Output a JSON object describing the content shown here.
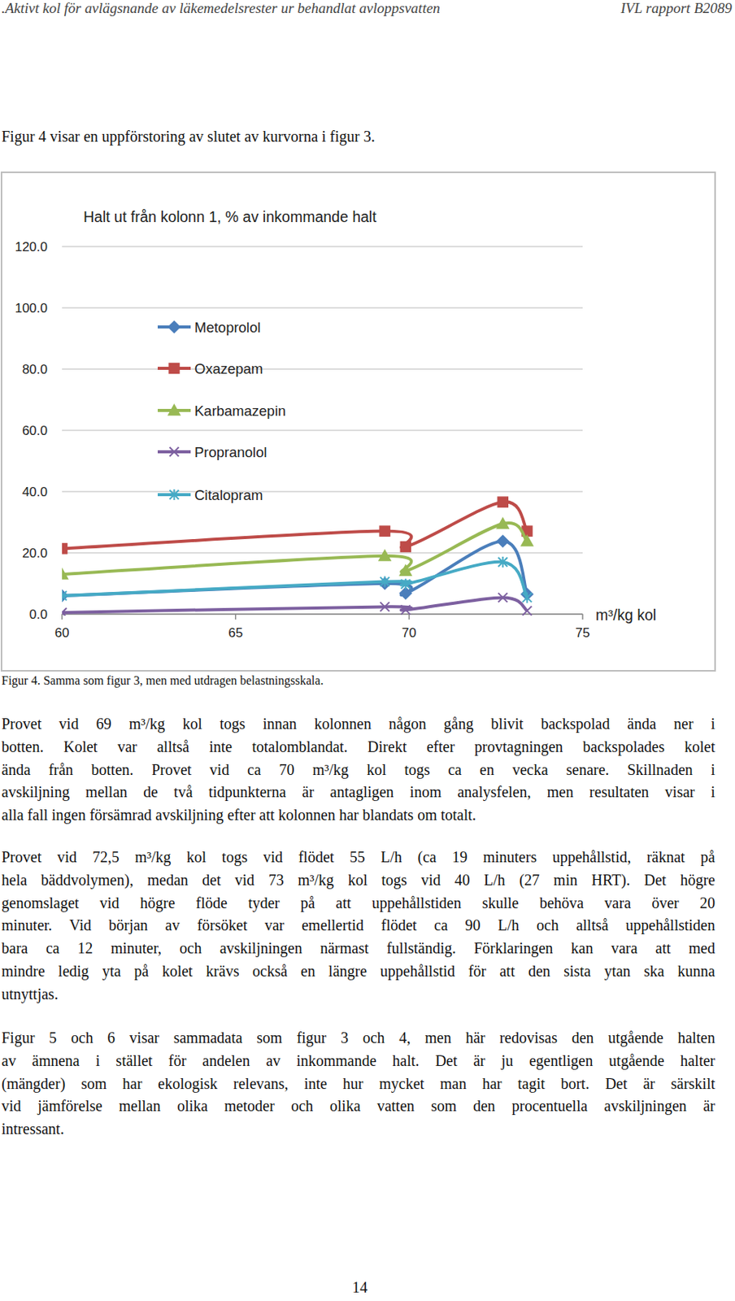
{
  "header": {
    "left": ".Aktivt kol för avlägsnande av läkemedelsrester ur behandlat avloppsvatten",
    "right": "IVL rapport B2089"
  },
  "intro": "Figur 4 visar en uppförstoring av slutet av kurvorna i figur 3.",
  "chart_data": {
    "type": "line",
    "title": "Halt ut från kolonn 1, % av inkommande halt",
    "x_label": "m³/kg kol",
    "x": [
      60,
      69.3,
      69.9,
      72.7,
      73.4
    ],
    "xlim": [
      60,
      75
    ],
    "xticks": [
      60,
      65,
      70,
      75
    ],
    "ylim": [
      0,
      120
    ],
    "yticks": [
      {
        "value": 0,
        "label": "0.0"
      },
      {
        "value": 20,
        "label": "20.0"
      },
      {
        "value": 40,
        "label": "40.0"
      },
      {
        "value": 60,
        "label": "60.0"
      },
      {
        "value": 80,
        "label": "80.0"
      },
      {
        "value": 100,
        "label": "100.0"
      },
      {
        "value": 120,
        "label": "120.0"
      }
    ],
    "grid": true,
    "legend": "top-left",
    "series": [
      {
        "name": "Metoprolol",
        "color": "#4a7ebb",
        "marker": "diamond",
        "values": [
          6,
          10,
          6.8,
          23.8,
          6.5
        ]
      },
      {
        "name": "Oxazepam",
        "color": "#be4b48",
        "marker": "square",
        "values": [
          21.4,
          27.1,
          22,
          36.6,
          27.1
        ]
      },
      {
        "name": "Karbamazepin",
        "color": "#98b954",
        "marker": "triangle",
        "values": [
          13,
          19,
          14.1,
          29.5,
          23.8
        ]
      },
      {
        "name": "Propranolol",
        "color": "#7d60a0",
        "marker": "x",
        "values": [
          0.5,
          2.4,
          1.4,
          5.4,
          1.1
        ]
      },
      {
        "name": "Citalopram",
        "color": "#46aac5",
        "marker": "star",
        "values": [
          6,
          10.6,
          9.8,
          17,
          5.4
        ]
      }
    ]
  },
  "caption": "Figur 4.  Samma som figur 3, men med utdragen belastningsskala.",
  "paragraphs": [
    {
      "lines": [
        "Provet vid 69 m³/kg kol togs innan kolonnen någon gång blivit backspolad ända ner i",
        "botten. Kolet var alltså inte totalomblandat. Direkt efter provtagningen backspolades kolet",
        "ända från botten. Provet vid ca 70 m³/kg kol togs ca en vecka senare. Skillnaden i",
        "avskiljning mellan de två tidpunkterna är antagligen inom analysfelen, men resultaten visar i",
        "alla fall ingen försämrad avskiljning efter att kolonnen har blandats om totalt."
      ]
    },
    {
      "lines": [
        "Provet vid 72,5 m³/kg kol togs vid flödet 55 L/h (ca 19 minuters uppehållstid, räknat på",
        "hela bäddvolymen), medan det vid 73 m³/kg kol togs vid 40 L/h (27 min HRT). Det högre",
        "genomslaget vid högre flöde tyder på att uppehållstiden skulle behöva vara över 20",
        "minuter. Vid början av försöket var emellertid flödet ca 90 L/h och alltså uppehållstiden",
        "bara ca 12 minuter, och avskiljningen närmast fullständig. Förklaringen kan vara att med",
        "mindre ledig yta på kolet krävs också en längre uppehållstid för att den sista ytan ska kunna",
        "utnyttjas."
      ]
    },
    {
      "lines": [
        "Figur 5 och 6 visar sammadata som figur 3 och 4, men här redovisas den utgående halten",
        "av ämnena i stället för andelen av inkommande halt. Det är ju egentligen utgående halter",
        "(mängder) som har ekologisk relevans, inte hur mycket man har tagit bort. Det är särskilt",
        "vid jämförelse mellan olika metoder och olika vatten som den procentuella avskiljningen är",
        "intressant."
      ]
    }
  ],
  "page_number": "14"
}
